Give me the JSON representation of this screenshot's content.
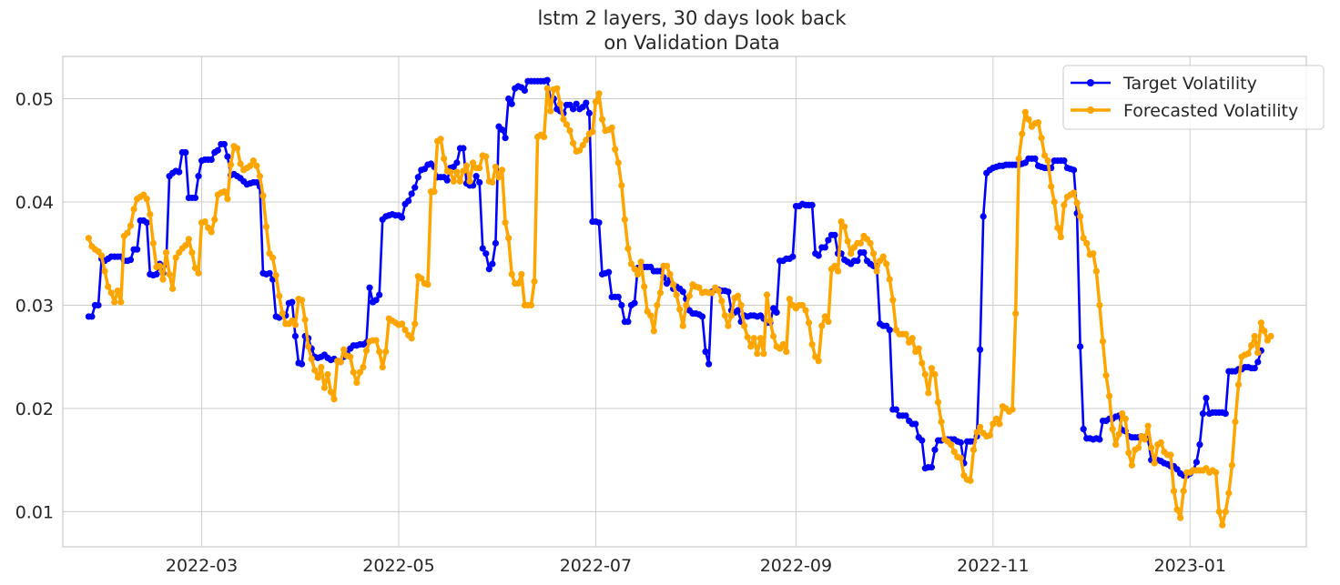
{
  "chart_data": {
    "type": "line",
    "title": "lstm 2 layers, 30 days look back",
    "subtitle": "on Validation Data",
    "xlabel": "",
    "ylabel": "",
    "x_start": "2022-01-25",
    "xlim": [
      "2022-01-17",
      "2023-02-06"
    ],
    "ylim": [
      0.0066,
      0.0541
    ],
    "grid": true,
    "legend_position": "top-right",
    "x_ticks": [
      "2022-03",
      "2022-05",
      "2022-07",
      "2022-09",
      "2022-11",
      "2023-01"
    ],
    "x_tick_dates": [
      "2022-03-01",
      "2022-05-01",
      "2022-07-01",
      "2022-09-01",
      "2022-11-01",
      "2023-01-01"
    ],
    "y_ticks": [
      "0.01",
      "0.02",
      "0.03",
      "0.04",
      "0.05"
    ],
    "y_tick_values": [
      0.01,
      0.02,
      0.03,
      0.04,
      0.05
    ],
    "series": [
      {
        "name": "Target Volatility",
        "color": "#0000ff",
        "values": [
          0.0289,
          0.0289,
          0.03,
          0.03,
          0.0345,
          0.0343,
          0.0345,
          0.0347,
          0.0347,
          0.0347,
          0.0347,
          0.0343,
          0.0343,
          0.0344,
          0.0354,
          0.0354,
          0.0382,
          0.0382,
          0.038,
          0.033,
          0.0329,
          0.033,
          0.034,
          0.0331,
          0.034,
          0.0425,
          0.0428,
          0.043,
          0.0429,
          0.0448,
          0.0448,
          0.0404,
          0.0404,
          0.0404,
          0.0425,
          0.044,
          0.0441,
          0.0441,
          0.0441,
          0.0448,
          0.045,
          0.0456,
          0.0456,
          0.0444,
          0.0426,
          0.0427,
          0.0425,
          0.0423,
          0.042,
          0.0417,
          0.0418,
          0.0419,
          0.0419,
          0.0415,
          0.0331,
          0.033,
          0.0331,
          0.0325,
          0.0289,
          0.0288,
          0.029,
          0.029,
          0.0302,
          0.0303,
          0.027,
          0.0244,
          0.0243,
          0.027,
          0.0268,
          0.0258,
          0.025,
          0.0249,
          0.025,
          0.0252,
          0.0249,
          0.0247,
          0.0248,
          0.0246,
          0.0245,
          0.025,
          0.0253,
          0.0258,
          0.0261,
          0.0261,
          0.0262,
          0.0262,
          0.0264,
          0.0317,
          0.0303,
          0.0305,
          0.031,
          0.0383,
          0.0386,
          0.0387,
          0.0388,
          0.0387,
          0.0387,
          0.0385,
          0.0398,
          0.0401,
          0.0408,
          0.0414,
          0.0424,
          0.0431,
          0.0432,
          0.0436,
          0.0437,
          0.0434,
          0.0424,
          0.0424,
          0.0424,
          0.0421,
          0.0433,
          0.0434,
          0.0438,
          0.0452,
          0.0452,
          0.0418,
          0.0416,
          0.0416,
          0.0425,
          0.0419,
          0.0355,
          0.035,
          0.0335,
          0.034,
          0.036,
          0.0473,
          0.047,
          0.0462,
          0.05,
          0.0495,
          0.051,
          0.0512,
          0.0511,
          0.0508,
          0.0517,
          0.0517,
          0.0517,
          0.0517,
          0.0517,
          0.0517,
          0.0518,
          0.05,
          0.05,
          0.049,
          0.0488,
          0.0486,
          0.0494,
          0.0494,
          0.049,
          0.0495,
          0.049,
          0.0492,
          0.0496,
          0.0486,
          0.0381,
          0.0381,
          0.038,
          0.033,
          0.0331,
          0.0332,
          0.0308,
          0.0308,
          0.0308,
          0.03,
          0.0284,
          0.0284,
          0.03,
          0.0302,
          0.0336,
          0.0337,
          0.0337,
          0.0337,
          0.0337,
          0.0333,
          0.0333,
          0.0333,
          0.0327,
          0.0321,
          0.0325,
          0.0316,
          0.0318,
          0.0316,
          0.0313,
          0.0306,
          0.0295,
          0.0292,
          0.0292,
          0.0291,
          0.0289,
          0.0255,
          0.0243,
          0.0313,
          0.0315,
          0.0315,
          0.0314,
          0.0314,
          0.0313,
          0.0295,
          0.0293,
          0.0295,
          0.0284,
          0.029,
          0.0289,
          0.029,
          0.029,
          0.0289,
          0.029,
          0.0287,
          0.0283,
          0.0283,
          0.0297,
          0.0293,
          0.0343,
          0.0343,
          0.0345,
          0.0345,
          0.0347,
          0.0396,
          0.0396,
          0.0398,
          0.0397,
          0.0397,
          0.0397,
          0.035,
          0.0348,
          0.0356,
          0.0356,
          0.0363,
          0.0368,
          0.0368,
          0.035,
          0.035,
          0.0344,
          0.0342,
          0.034,
          0.0343,
          0.0343,
          0.0351,
          0.0351,
          0.0343,
          0.034,
          0.0338,
          0.0338,
          0.0282,
          0.028,
          0.028,
          0.0276,
          0.0199,
          0.0199,
          0.0193,
          0.0193,
          0.0193,
          0.0188,
          0.0185,
          0.0185,
          0.0172,
          0.0169,
          0.0142,
          0.0143,
          0.0143,
          0.016,
          0.0169,
          0.0169,
          0.017,
          0.017,
          0.017,
          0.017,
          0.0168,
          0.0167,
          0.0147,
          0.0168,
          0.0168,
          0.0168,
          0.0173,
          0.0257,
          0.0386,
          0.0428,
          0.0431,
          0.0433,
          0.0434,
          0.0435,
          0.0435,
          0.0436,
          0.0436,
          0.0436,
          0.0436,
          0.0436,
          0.0437,
          0.0438,
          0.0442,
          0.0442,
          0.0442,
          0.0435,
          0.0434,
          0.0433,
          0.0433,
          0.0433,
          0.044,
          0.044,
          0.044,
          0.044,
          0.0433,
          0.0432,
          0.0431,
          0.0389,
          0.026,
          0.018,
          0.0171,
          0.0171,
          0.017,
          0.0171,
          0.017,
          0.0188,
          0.0188,
          0.019,
          0.019,
          0.0192,
          0.0193,
          0.0179,
          0.0178,
          0.0173,
          0.0172,
          0.0172,
          0.0172,
          0.0173,
          0.0172,
          0.017,
          0.015,
          0.015,
          0.015,
          0.0149,
          0.0147,
          0.0146,
          0.0144,
          0.0144,
          0.0141,
          0.0137,
          0.0135,
          0.0135,
          0.0137,
          0.014,
          0.0148,
          0.0165,
          0.0195,
          0.021,
          0.0195,
          0.0196,
          0.0196,
          0.0196,
          0.0196,
          0.0195,
          0.0236,
          0.0236,
          0.0236,
          0.0238,
          0.0238,
          0.024,
          0.024,
          0.0239,
          0.0239,
          0.0245,
          0.0256
        ]
      },
      {
        "name": "Forecasted Volatility",
        "color": "#ffa500",
        "values": [
          0.0365,
          0.0357,
          0.0354,
          0.0352,
          0.0348,
          0.0333,
          0.0318,
          0.0312,
          0.0303,
          0.0314,
          0.0303,
          0.0367,
          0.037,
          0.0377,
          0.0393,
          0.0403,
          0.0405,
          0.0407,
          0.0403,
          0.0388,
          0.036,
          0.0337,
          0.0338,
          0.0325,
          0.0351,
          0.033,
          0.0316,
          0.0346,
          0.0351,
          0.0355,
          0.0358,
          0.0364,
          0.0351,
          0.0336,
          0.0331,
          0.038,
          0.0381,
          0.0375,
          0.0371,
          0.0383,
          0.0407,
          0.0409,
          0.041,
          0.0403,
          0.0436,
          0.0454,
          0.0452,
          0.0437,
          0.0431,
          0.0433,
          0.0435,
          0.044,
          0.0435,
          0.0425,
          0.0406,
          0.0376,
          0.035,
          0.0346,
          0.0329,
          0.0309,
          0.0292,
          0.0282,
          0.0282,
          0.0285,
          0.0281,
          0.0306,
          0.0305,
          0.0286,
          0.026,
          0.0248,
          0.0237,
          0.023,
          0.024,
          0.022,
          0.0233,
          0.0216,
          0.0209,
          0.0246,
          0.0245,
          0.0257,
          0.0251,
          0.025,
          0.0235,
          0.0225,
          0.0235,
          0.024,
          0.0256,
          0.0265,
          0.0266,
          0.0266,
          0.0255,
          0.024,
          0.0255,
          0.0287,
          0.0285,
          0.0283,
          0.0281,
          0.0282,
          0.0276,
          0.0271,
          0.0268,
          0.0282,
          0.0328,
          0.0326,
          0.0321,
          0.032,
          0.041,
          0.041,
          0.0459,
          0.0461,
          0.0442,
          0.043,
          0.0429,
          0.042,
          0.0429,
          0.042,
          0.043,
          0.0435,
          0.042,
          0.0438,
          0.0433,
          0.0433,
          0.0445,
          0.0444,
          0.042,
          0.0419,
          0.0434,
          0.0424,
          0.0431,
          0.038,
          0.0365,
          0.033,
          0.0321,
          0.0321,
          0.033,
          0.03,
          0.03,
          0.03,
          0.0323,
          0.0463,
          0.0465,
          0.0463,
          0.051,
          0.0488,
          0.0509,
          0.051,
          0.0495,
          0.048,
          0.0475,
          0.0469,
          0.0457,
          0.0449,
          0.045,
          0.0455,
          0.046,
          0.0466,
          0.0468,
          0.0497,
          0.0505,
          0.048,
          0.0469,
          0.047,
          0.0472,
          0.0451,
          0.0438,
          0.0416,
          0.0383,
          0.0355,
          0.034,
          0.0335,
          0.033,
          0.0342,
          0.0318,
          0.0294,
          0.029,
          0.0275,
          0.03,
          0.0312,
          0.0338,
          0.0338,
          0.033,
          0.032,
          0.031,
          0.0296,
          0.028,
          0.03,
          0.0309,
          0.032,
          0.0318,
          0.0317,
          0.0312,
          0.0313,
          0.0312,
          0.0312,
          0.0317,
          0.0314,
          0.0304,
          0.029,
          0.028,
          0.029,
          0.0307,
          0.0309,
          0.03,
          0.028,
          0.0269,
          0.026,
          0.0268,
          0.0253,
          0.0268,
          0.0253,
          0.031,
          0.0285,
          0.027,
          0.026,
          0.0258,
          0.0262,
          0.0255,
          0.0306,
          0.03,
          0.0297,
          0.03,
          0.03,
          0.0295,
          0.0283,
          0.0262,
          0.025,
          0.0246,
          0.028,
          0.0289,
          0.0284,
          0.0335,
          0.0338,
          0.0333,
          0.0381,
          0.0376,
          0.0362,
          0.035,
          0.0356,
          0.036,
          0.036,
          0.0367,
          0.0364,
          0.036,
          0.035,
          0.0333,
          0.0343,
          0.0347,
          0.034,
          0.0325,
          0.0305,
          0.0276,
          0.0272,
          0.0272,
          0.0272,
          0.0264,
          0.0268,
          0.0255,
          0.0258,
          0.0244,
          0.0233,
          0.0215,
          0.0239,
          0.0233,
          0.0206,
          0.0187,
          0.017,
          0.0168,
          0.0165,
          0.0158,
          0.0153,
          0.0152,
          0.0135,
          0.0131,
          0.013,
          0.016,
          0.0177,
          0.0182,
          0.0176,
          0.0173,
          0.0174,
          0.0185,
          0.019,
          0.0185,
          0.0202,
          0.02,
          0.0197,
          0.0199,
          0.0292,
          0.0442,
          0.0466,
          0.0487,
          0.048,
          0.0473,
          0.0476,
          0.0477,
          0.0462,
          0.0445,
          0.044,
          0.0415,
          0.04,
          0.0375,
          0.0366,
          0.0397,
          0.0405,
          0.0407,
          0.0409,
          0.0399,
          0.0386,
          0.0365,
          0.036,
          0.0349,
          0.035,
          0.0333,
          0.03,
          0.0265,
          0.0232,
          0.0212,
          0.018,
          0.0165,
          0.0175,
          0.0195,
          0.019,
          0.0157,
          0.0145,
          0.016,
          0.0162,
          0.0173,
          0.017,
          0.0183,
          0.0162,
          0.0147,
          0.0165,
          0.0167,
          0.0158,
          0.0155,
          0.0155,
          0.012,
          0.0102,
          0.0094,
          0.012,
          0.0138,
          0.0138,
          0.014,
          0.014,
          0.014,
          0.014,
          0.0142,
          0.0138,
          0.014,
          0.0138,
          0.01,
          0.0087,
          0.01,
          0.0118,
          0.0145,
          0.0187,
          0.0223,
          0.025,
          0.0252,
          0.0253,
          0.0261,
          0.027,
          0.0254,
          0.0283,
          0.0275,
          0.0266,
          0.027
        ]
      }
    ]
  }
}
